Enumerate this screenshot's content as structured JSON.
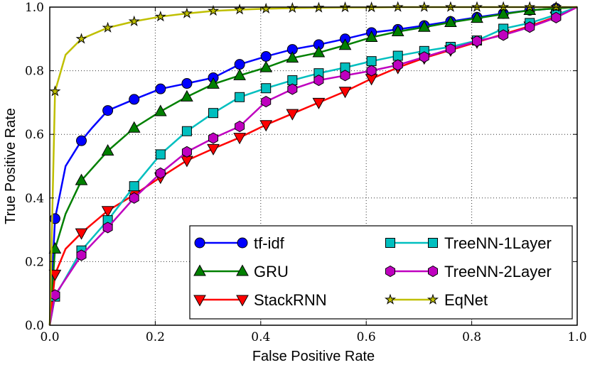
{
  "chart_data": {
    "type": "line",
    "title": "",
    "xlabel": "False Positive Rate",
    "ylabel": "True Positive Rate",
    "xlim": [
      0.0,
      1.0
    ],
    "ylim": [
      0.0,
      1.0
    ],
    "xticks": [
      "0.0",
      "0.2",
      "0.4",
      "0.6",
      "0.8",
      "1.0"
    ],
    "yticks": [
      "0.0",
      "0.2",
      "0.4",
      "0.6",
      "0.8",
      "1.0"
    ],
    "grid": true,
    "legend_position": "bottom-right",
    "series": [
      {
        "name": "tf-idf",
        "color": "#0000ff",
        "marker": "circle",
        "x": [
          0.0,
          0.01,
          0.03,
          0.06,
          0.08,
          0.11,
          0.16,
          0.21,
          0.26,
          0.31,
          0.36,
          0.41,
          0.46,
          0.51,
          0.56,
          0.61,
          0.66,
          0.71,
          0.76,
          0.81,
          0.86,
          0.91,
          0.96,
          1.0
        ],
        "y": [
          0.0,
          0.335,
          0.5,
          0.58,
          0.62,
          0.675,
          0.71,
          0.743,
          0.76,
          0.778,
          0.82,
          0.845,
          0.867,
          0.882,
          0.9,
          0.92,
          0.93,
          0.942,
          0.955,
          0.968,
          0.98,
          0.99,
          0.996,
          1.0
        ],
        "markers_x": [
          0.01,
          0.06,
          0.11,
          0.16,
          0.21,
          0.26,
          0.31,
          0.36,
          0.41,
          0.46,
          0.51,
          0.56,
          0.61,
          0.66,
          0.71,
          0.76,
          0.81,
          0.86,
          0.91,
          0.96
        ]
      },
      {
        "name": "GRU",
        "color": "#008000",
        "marker": "triangle-up",
        "x": [
          0.0,
          0.01,
          0.03,
          0.06,
          0.11,
          0.16,
          0.21,
          0.26,
          0.31,
          0.36,
          0.41,
          0.46,
          0.51,
          0.56,
          0.61,
          0.66,
          0.71,
          0.76,
          0.81,
          0.86,
          0.91,
          0.96,
          1.0
        ],
        "y": [
          0.0,
          0.24,
          0.35,
          0.455,
          0.548,
          0.62,
          0.672,
          0.718,
          0.758,
          0.785,
          0.81,
          0.84,
          0.857,
          0.88,
          0.905,
          0.923,
          0.937,
          0.952,
          0.965,
          0.978,
          0.99,
          0.996,
          1.0
        ],
        "markers_x": [
          0.01,
          0.06,
          0.11,
          0.16,
          0.21,
          0.26,
          0.31,
          0.36,
          0.41,
          0.46,
          0.51,
          0.56,
          0.61,
          0.66,
          0.71,
          0.76,
          0.81,
          0.86,
          0.91,
          0.96
        ]
      },
      {
        "name": "StackRNN",
        "color": "#ff0000",
        "marker": "triangle-down",
        "x": [
          0.0,
          0.01,
          0.03,
          0.06,
          0.11,
          0.16,
          0.21,
          0.26,
          0.31,
          0.36,
          0.41,
          0.46,
          0.51,
          0.56,
          0.61,
          0.66,
          0.71,
          0.76,
          0.81,
          0.86,
          0.91,
          0.96,
          1.0
        ],
        "y": [
          0.0,
          0.16,
          0.24,
          0.29,
          0.36,
          0.41,
          0.465,
          0.518,
          0.555,
          0.59,
          0.63,
          0.665,
          0.7,
          0.735,
          0.775,
          0.81,
          0.84,
          0.865,
          0.89,
          0.915,
          0.94,
          0.97,
          1.0
        ],
        "markers_x": [
          0.01,
          0.06,
          0.11,
          0.16,
          0.21,
          0.26,
          0.31,
          0.36,
          0.41,
          0.46,
          0.51,
          0.56,
          0.61,
          0.66,
          0.71,
          0.76,
          0.81,
          0.86,
          0.91,
          0.96
        ]
      },
      {
        "name": "TreeNN-1Layer",
        "color": "#00bfbf",
        "marker": "square",
        "x": [
          0.0,
          0.01,
          0.06,
          0.11,
          0.16,
          0.21,
          0.26,
          0.31,
          0.36,
          0.41,
          0.46,
          0.51,
          0.56,
          0.61,
          0.66,
          0.71,
          0.76,
          0.81,
          0.86,
          0.91,
          0.96,
          1.0
        ],
        "y": [
          0.0,
          0.09,
          0.235,
          0.33,
          0.437,
          0.537,
          0.61,
          0.667,
          0.717,
          0.745,
          0.77,
          0.792,
          0.81,
          0.83,
          0.847,
          0.862,
          0.875,
          0.895,
          0.932,
          0.95,
          0.976,
          1.0
        ],
        "markers_x": [
          0.01,
          0.06,
          0.11,
          0.16,
          0.21,
          0.26,
          0.31,
          0.36,
          0.41,
          0.46,
          0.51,
          0.56,
          0.61,
          0.66,
          0.71,
          0.76,
          0.81,
          0.86,
          0.91,
          0.96
        ]
      },
      {
        "name": "TreeNN-2Layer",
        "color": "#bf00bf",
        "marker": "hexagon",
        "x": [
          0.0,
          0.01,
          0.06,
          0.11,
          0.16,
          0.21,
          0.26,
          0.31,
          0.36,
          0.41,
          0.46,
          0.51,
          0.56,
          0.61,
          0.66,
          0.71,
          0.76,
          0.81,
          0.86,
          0.91,
          0.96,
          1.0
        ],
        "y": [
          0.0,
          0.095,
          0.22,
          0.307,
          0.4,
          0.478,
          0.545,
          0.588,
          0.625,
          0.703,
          0.742,
          0.77,
          0.785,
          0.8,
          0.818,
          0.843,
          0.868,
          0.893,
          0.912,
          0.937,
          0.967,
          1.0
        ],
        "markers_x": [
          0.01,
          0.06,
          0.11,
          0.16,
          0.21,
          0.26,
          0.31,
          0.36,
          0.41,
          0.46,
          0.51,
          0.56,
          0.61,
          0.66,
          0.71,
          0.76,
          0.81,
          0.86,
          0.91,
          0.96
        ]
      },
      {
        "name": "EqNet",
        "color": "#bfbf00",
        "marker": "star",
        "x": [
          0.0,
          0.01,
          0.03,
          0.06,
          0.11,
          0.16,
          0.21,
          0.26,
          0.31,
          0.36,
          0.41,
          0.46,
          0.51,
          0.56,
          0.61,
          0.66,
          0.71,
          0.76,
          0.81,
          0.86,
          0.91,
          0.96,
          1.0
        ],
        "y": [
          0.0,
          0.735,
          0.85,
          0.9,
          0.935,
          0.955,
          0.97,
          0.98,
          0.988,
          0.992,
          0.995,
          0.997,
          0.998,
          0.999,
          0.999,
          1.0,
          1.0,
          1.0,
          1.0,
          1.0,
          1.0,
          1.0,
          1.0
        ],
        "markers_x": [
          0.01,
          0.06,
          0.11,
          0.16,
          0.21,
          0.26,
          0.31,
          0.36,
          0.41,
          0.46,
          0.51,
          0.56,
          0.61,
          0.66,
          0.71,
          0.76,
          0.81,
          0.86,
          0.91,
          0.96
        ]
      }
    ]
  }
}
